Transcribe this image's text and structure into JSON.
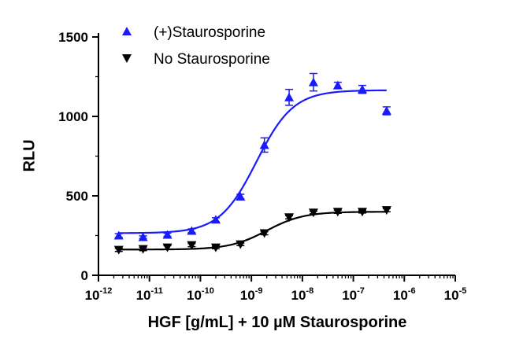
{
  "chart_data": {
    "type": "scatter",
    "title": "",
    "xlabel": "HGF [g/mL] + 10 µM Staurosporine",
    "ylabel": "RLU",
    "xscale": "log",
    "xlim": [
      1e-12,
      1e-05
    ],
    "ylim": [
      0,
      1500
    ],
    "x_tick_labels": [
      {
        "base": "10",
        "exp": "-12"
      },
      {
        "base": "10",
        "exp": "-11"
      },
      {
        "base": "10",
        "exp": "-10"
      },
      {
        "base": "10",
        "exp": "-9"
      },
      {
        "base": "10",
        "exp": "-8"
      },
      {
        "base": "10",
        "exp": "-7"
      },
      {
        "base": "10",
        "exp": "-6"
      },
      {
        "base": "10",
        "exp": "-5"
      }
    ],
    "y_ticks": [
      0,
      500,
      1000,
      1500
    ],
    "legend_position": "top-left",
    "series": [
      {
        "name": "(+)Staurosporine",
        "color": "#1a1aff",
        "marker": "triangle-up",
        "x": [
          2.5e-12,
          7.5e-12,
          2.25e-11,
          6.75e-11,
          2e-10,
          6.1e-10,
          1.8e-09,
          5.5e-09,
          1.65e-08,
          4.95e-08,
          1.5e-07,
          4.5e-07
        ],
        "y": [
          250,
          240,
          255,
          280,
          350,
          495,
          820,
          1120,
          1215,
          1195,
          1170,
          1035
        ],
        "error": [
          12,
          8,
          10,
          12,
          12,
          15,
          45,
          50,
          55,
          20,
          25,
          25
        ],
        "fit": {
          "bottom": 265,
          "top": 1165,
          "log_ec50": -8.9,
          "hill": 1.2
        }
      },
      {
        "name": "No Staurosporine",
        "color": "#000000",
        "marker": "triangle-down",
        "x": [
          2.5e-12,
          7.5e-12,
          2.25e-11,
          6.75e-11,
          2e-10,
          6.1e-10,
          1.8e-09,
          5.5e-09,
          1.65e-08,
          4.95e-08,
          1.5e-07,
          4.5e-07
        ],
        "y": [
          160,
          165,
          175,
          190,
          175,
          195,
          265,
          365,
          395,
          400,
          400,
          410
        ],
        "error": [
          10,
          10,
          12,
          10,
          8,
          8,
          10,
          10,
          8,
          10,
          8,
          10
        ],
        "fit": {
          "bottom": 162,
          "top": 400,
          "log_ec50": -8.7,
          "hill": 1.2
        }
      }
    ]
  }
}
